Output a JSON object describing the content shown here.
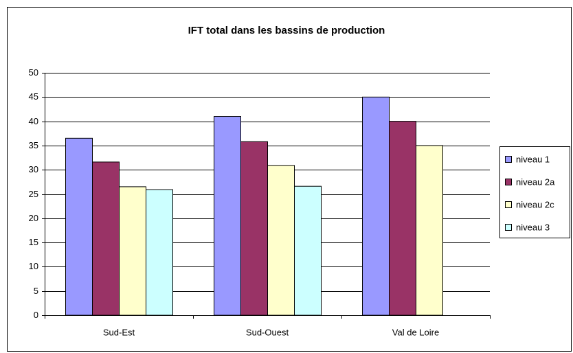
{
  "chart_data": {
    "type": "bar",
    "title": "IFT total dans les bassins de production",
    "categories": [
      "Sud-Est",
      "Sud-Ouest",
      "Val de Loire"
    ],
    "series": [
      {
        "name": "niveau 1",
        "color": "#9999ff",
        "values": [
          36.5,
          41,
          45
        ]
      },
      {
        "name": "niveau 2a",
        "color": "#993366",
        "values": [
          31.6,
          35.8,
          40
        ]
      },
      {
        "name": "niveau 2c",
        "color": "#ffffcc",
        "values": [
          26.5,
          30.9,
          35
        ]
      },
      {
        "name": "niveau 3",
        "color": "#ccffff",
        "values": [
          25.9,
          26.6,
          null
        ]
      }
    ],
    "ylim": [
      0,
      50
    ],
    "yticks": [
      0,
      5,
      10,
      15,
      20,
      25,
      30,
      35,
      40,
      45,
      50
    ],
    "grid": true,
    "legend": "right"
  }
}
